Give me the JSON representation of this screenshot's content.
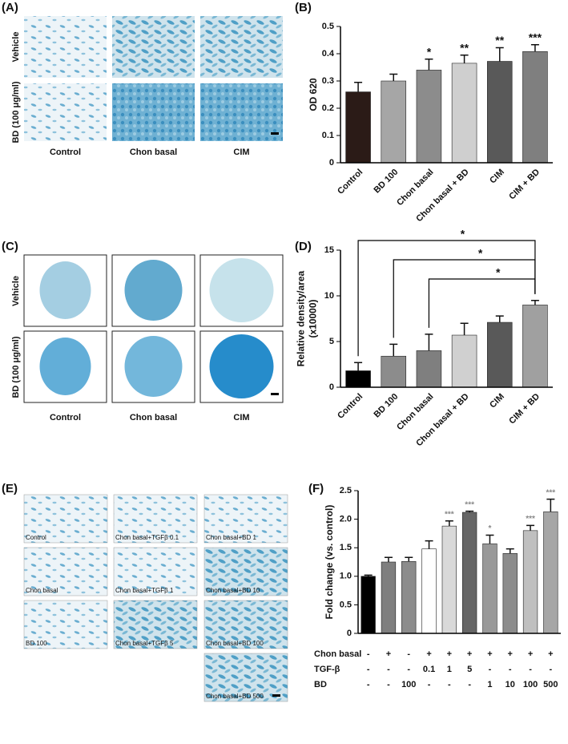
{
  "image_panels": [
    {
      "label": "(A)",
      "row_labels": [
        "Vehicle",
        "BD (100 μg/ml)"
      ],
      "col_labels": [
        "Control",
        "Chon basal",
        "CIM"
      ]
    },
    {
      "label": "(C)",
      "row_labels": [
        "Vehicle",
        "BD (100 μg/ml)"
      ],
      "col_labels": [
        "Control",
        "Chon basal",
        "CIM"
      ]
    },
    {
      "label": "(E)",
      "captions": [
        "Control",
        "Chon basal+TGFβ 0.1",
        "Chon basal+BD 1",
        "Chon basal",
        "Chon basal+TGFβ 1",
        "Chon basal+BD 10",
        "BD 100",
        "Chon basal+TGFβ 5",
        "Chon basal+BD 100",
        "Chon basal+BD 500"
      ]
    }
  ],
  "chart_data": [
    {
      "type": "bar",
      "label": "(B)",
      "ylabel": [
        "OD 620"
      ],
      "categories": [
        "Control",
        "BD 100",
        "Chon basal",
        "Chon basal + BD",
        "CIM",
        "CIM + BD"
      ],
      "values": [
        0.26,
        0.3,
        0.34,
        0.365,
        0.372,
        0.408
      ],
      "errors": [
        0.035,
        0.025,
        0.04,
        0.03,
        0.05,
        0.025
      ],
      "colors": [
        "#2b1b17",
        "#a6a6a6",
        "#8c8c8c",
        "#cfcfcf",
        "#595959",
        "#7f7f7f"
      ],
      "annotations": [
        null,
        null,
        "*",
        "**",
        "**",
        "***"
      ],
      "ylim": [
        0,
        0.5
      ],
      "yticks": [
        0,
        0.1,
        0.2,
        0.3,
        0.4,
        0.5
      ]
    },
    {
      "type": "bar",
      "label": "(D)",
      "ylabel": [
        "Relative density/area",
        "(x10000)"
      ],
      "categories": [
        "Control",
        "BD 100",
        "Chon basal",
        "Chon basal + BD",
        "CIM",
        "CIM + BD"
      ],
      "values": [
        1.8,
        3.4,
        4.0,
        5.7,
        7.1,
        9.0
      ],
      "errors": [
        0.9,
        1.3,
        1.8,
        1.3,
        0.7,
        0.5
      ],
      "colors": [
        "#000000",
        "#8c8c8c",
        "#7f7f7f",
        "#d0d0d0",
        "#595959",
        "#a0a0a0"
      ],
      "brackets": [
        {
          "from": 0,
          "to": 5,
          "label": "*"
        },
        {
          "from": 1,
          "to": 5,
          "label": "*"
        },
        {
          "from": 2,
          "to": 5,
          "label": "*"
        }
      ],
      "ylim": [
        0,
        15
      ],
      "yticks": [
        0,
        5,
        10,
        15
      ]
    },
    {
      "type": "bar",
      "label": "(F)",
      "ylabel": [
        "Fold change (vs. control)"
      ],
      "values": [
        1.0,
        1.25,
        1.26,
        1.48,
        1.88,
        2.12,
        1.57,
        1.4,
        1.8,
        2.13
      ],
      "errors": [
        0.02,
        0.08,
        0.07,
        0.14,
        0.09,
        0.02,
        0.15,
        0.08,
        0.09,
        0.22
      ],
      "colors": [
        "#000000",
        "#7f7f7f",
        "#8c8c8c",
        "#ffffff",
        "#d9d9d9",
        "#666666",
        "#999999",
        "#8c8c8c",
        "#bfbfbf",
        "#a6a6a6"
      ],
      "annotations": [
        null,
        null,
        null,
        null,
        "***",
        "***",
        "*",
        null,
        "***",
        "***"
      ],
      "conditions": [
        {
          "name": "Chon basal",
          "values": [
            "-",
            "+",
            "-",
            "+",
            "+",
            "+",
            "+",
            "+",
            "+",
            "+"
          ]
        },
        {
          "name": "TGF-β",
          "values": [
            "-",
            "-",
            "-",
            "0.1",
            "1",
            "5",
            "-",
            "-",
            "-",
            "-"
          ]
        },
        {
          "name": "BD",
          "values": [
            "-",
            "-",
            "100",
            "-",
            "-",
            "-",
            "1",
            "10",
            "100",
            "500"
          ]
        }
      ],
      "ylim": [
        0,
        2.5
      ],
      "yticks": [
        0,
        {
          "value": 0.5,
          "label": "0.5"
        },
        {
          "value": 1,
          "label": "1.0"
        },
        {
          "value": 1.5,
          "label": "1.5"
        },
        {
          "value": 2,
          "label": "2.0"
        },
        {
          "value": 2.5,
          "label": "2.5"
        }
      ]
    }
  ]
}
